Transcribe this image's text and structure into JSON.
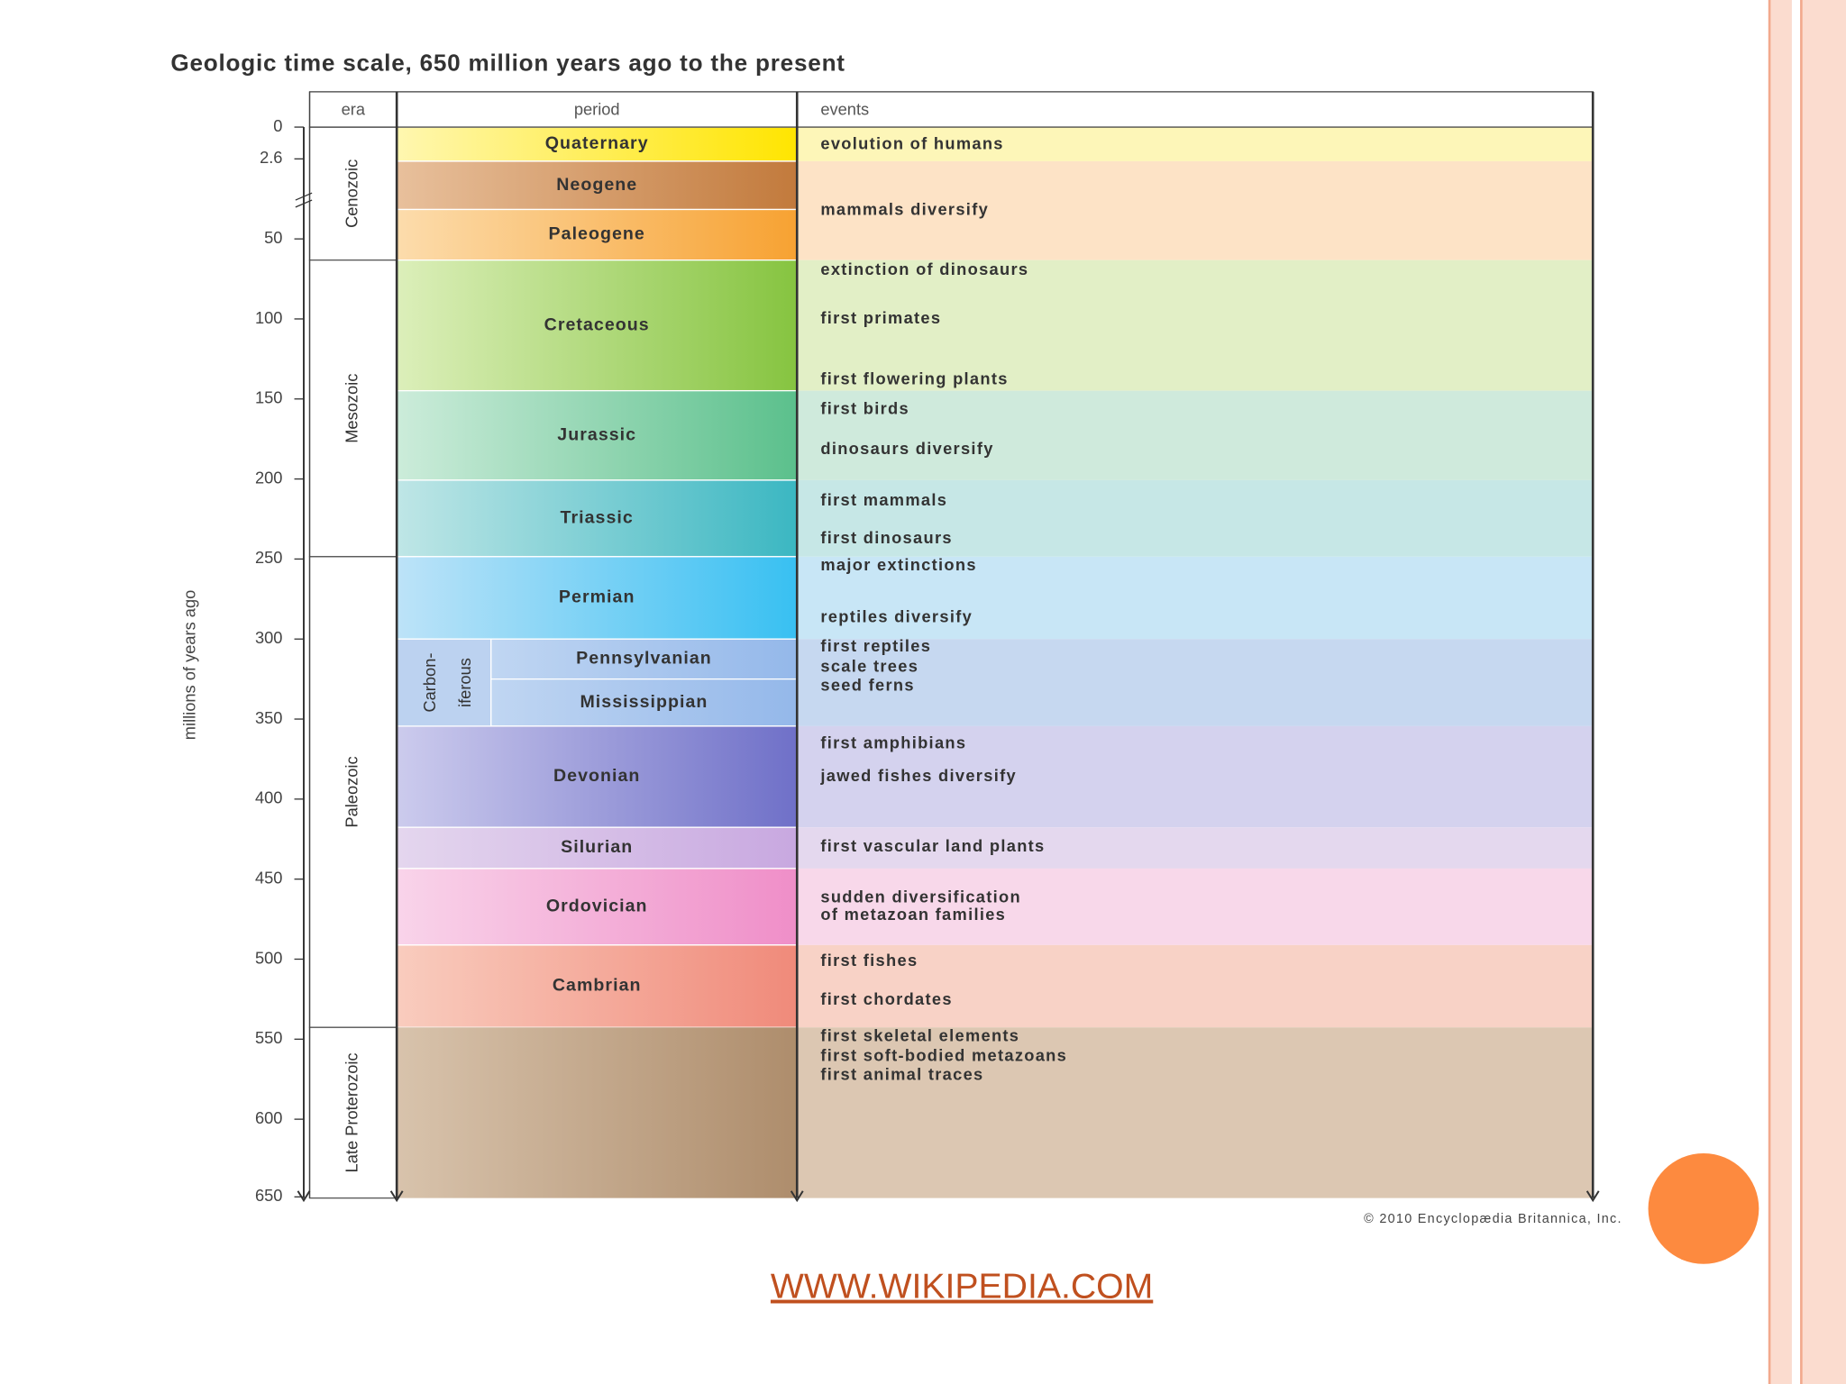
{
  "title": "Geologic time scale, 650 million years ago to the present",
  "axis_label": "millions of years ago",
  "ticks": [
    0,
    2.6,
    50,
    100,
    150,
    200,
    250,
    300,
    350,
    400,
    450,
    500,
    550,
    600,
    650
  ],
  "headers": {
    "era": "era",
    "period": "period",
    "events": "events"
  },
  "eras": [
    "Cenozoic",
    "Mesozoic",
    "Paleozoic",
    "Late Proterozoic"
  ],
  "periods": [
    "Quaternary",
    "Neogene",
    "Paleogene",
    "Cretaceous",
    "Jurassic",
    "Triassic",
    "Permian",
    "Pennsylvanian",
    "Mississippian",
    "Devonian",
    "Silurian",
    "Ordovician",
    "Cambrian"
  ],
  "carboniferous": [
    "Carbon-",
    "iferous"
  ],
  "events": [
    [
      "evolution of humans"
    ],
    [
      "mammals diversify"
    ],
    [
      "extinction of dinosaurs",
      "first primates",
      "first flowering plants"
    ],
    [
      "first birds",
      "dinosaurs diversify"
    ],
    [
      "first mammals",
      "first dinosaurs"
    ],
    [
      "major extinctions",
      "reptiles diversify"
    ],
    [
      "first reptiles",
      "scale trees",
      "seed ferns"
    ],
    [
      "first amphibians",
      "jawed fishes diversify"
    ],
    [
      "first vascular land plants"
    ],
    [
      "sudden diversification",
      " of metazoan families"
    ],
    [
      "first fishes",
      "first chordates"
    ],
    [
      "first skeletal elements",
      "first soft-bodied metazoans",
      "first animal traces"
    ]
  ],
  "credit": "© 2010 Encyclopædia Britannica, Inc.",
  "link": "WWW.WIKIPEDIA.COM"
}
